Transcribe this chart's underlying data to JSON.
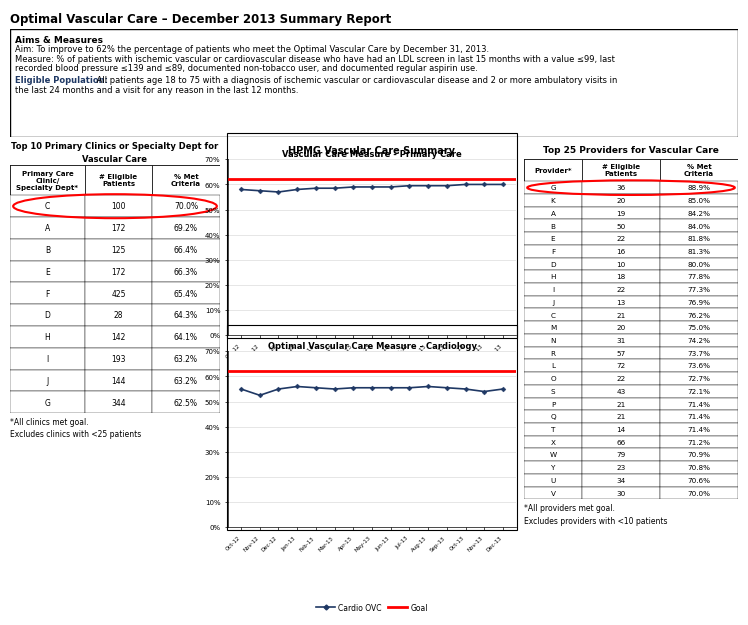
{
  "title": "Optimal Vascular Care – December 2013 Summary Report",
  "aims_title": "Aims & Measures",
  "aims_line1": "Aim: To improve to 62% the percentage of patients who meet the Optimal Vascular Care by December 31, 2013.",
  "aims_line2a": "Measure: % of patients with ischemic vascular or cardiovascular disease who have had an LDL screen in last 15 months with a value ≤99, last",
  "aims_line2b": "recorded blood pressure ≤139 and ≤89, documented non-tobacco user, and documented regular aspirin use.",
  "aims_line3a_bold": "Eligible Population:",
  "aims_line3a_rest": " All patients age 18 to 75 with a diagnosis of ischemic vascular or cardiovascular disease and 2 or more ambulatory visits in",
  "aims_line3b": "the last 24 months and a visit for any reason in the last 12 months.",
  "clinic_title_line1": "Top 10 Primary Clinics or Specialty Dept for",
  "clinic_title_line2": "Vascular Care",
  "clinic_col1": "Primary Care\nClinic/\nSpecialty Dept*",
  "clinic_col2": "# Eligible\nPatients",
  "clinic_col3": "% Met\nCriteria",
  "clinic_data": [
    [
      "C",
      "100",
      "70.0%"
    ],
    [
      "A",
      "172",
      "69.2%"
    ],
    [
      "B",
      "125",
      "66.4%"
    ],
    [
      "E",
      "172",
      "66.3%"
    ],
    [
      "F",
      "425",
      "65.4%"
    ],
    [
      "D",
      "28",
      "64.3%"
    ],
    [
      "H",
      "142",
      "64.1%"
    ],
    [
      "I",
      "193",
      "63.2%"
    ],
    [
      "J",
      "144",
      "63.2%"
    ],
    [
      "G",
      "344",
      "62.5%"
    ]
  ],
  "clinic_footnote1": "*All clinics met goal.",
  "clinic_footnote2": "Excludes clinics with <25 patients",
  "hpmg_title": "HPMG Vascular Care Summary",
  "pc_chart_title": "Vascular Care Measure - Primary Care",
  "pc_ovc_values": [
    58,
    57.5,
    57,
    58,
    58.5,
    58.5,
    59,
    59,
    59,
    59.5,
    59.5,
    59.5,
    60,
    60,
    60
  ],
  "pc_goal": 62,
  "cardio_chart_title": "Optimal Vascular Care Measure - Cardiology",
  "cardio_ovc_values": [
    55,
    52.5,
    55,
    56,
    55.5,
    55,
    55.5,
    55.5,
    55.5,
    55.5,
    56,
    55.5,
    55,
    54,
    55
  ],
  "cardio_goal": 62,
  "months": [
    "Oct-12",
    "Nov-12",
    "Dec-12",
    "Jan-13",
    "Feb-13",
    "Mar-13",
    "Apr-13",
    "May-13",
    "Jun-13",
    "Jul-13",
    "Aug-13",
    "Sep-13",
    "Oct-13",
    "Nov-13",
    "Dec-13"
  ],
  "provider_title": "Top 25 Providers for Vascular Care",
  "provider_col1": "Provider*",
  "provider_col2": "# Eligible\nPatients",
  "provider_col3": "% Met\nCriteria",
  "provider_data": [
    [
      "G",
      "36",
      "88.9%"
    ],
    [
      "K",
      "20",
      "85.0%"
    ],
    [
      "A",
      "19",
      "84.2%"
    ],
    [
      "B",
      "50",
      "84.0%"
    ],
    [
      "E",
      "22",
      "81.8%"
    ],
    [
      "F",
      "16",
      "81.3%"
    ],
    [
      "D",
      "10",
      "80.0%"
    ],
    [
      "H",
      "18",
      "77.8%"
    ],
    [
      "I",
      "22",
      "77.3%"
    ],
    [
      "J",
      "13",
      "76.9%"
    ],
    [
      "C",
      "21",
      "76.2%"
    ],
    [
      "M",
      "20",
      "75.0%"
    ],
    [
      "N",
      "31",
      "74.2%"
    ],
    [
      "R",
      "57",
      "73.7%"
    ],
    [
      "L",
      "72",
      "73.6%"
    ],
    [
      "O",
      "22",
      "72.7%"
    ],
    [
      "S",
      "43",
      "72.1%"
    ],
    [
      "P",
      "21",
      "71.4%"
    ],
    [
      "Q",
      "21",
      "71.4%"
    ],
    [
      "T",
      "14",
      "71.4%"
    ],
    [
      "X",
      "66",
      "71.2%"
    ],
    [
      "W",
      "79",
      "70.9%"
    ],
    [
      "Y",
      "23",
      "70.8%"
    ],
    [
      "U",
      "34",
      "70.6%"
    ],
    [
      "V",
      "30",
      "70.0%"
    ]
  ],
  "provider_footnote1": "*All providers met goal.",
  "provider_footnote2": "Excludes providers with <10 patients",
  "line_color_ovc": "#1F3864",
  "line_color_goal": "#FF0000",
  "bg_color": "#FFFFFF",
  "eligible_pop_color": "#1F3864"
}
